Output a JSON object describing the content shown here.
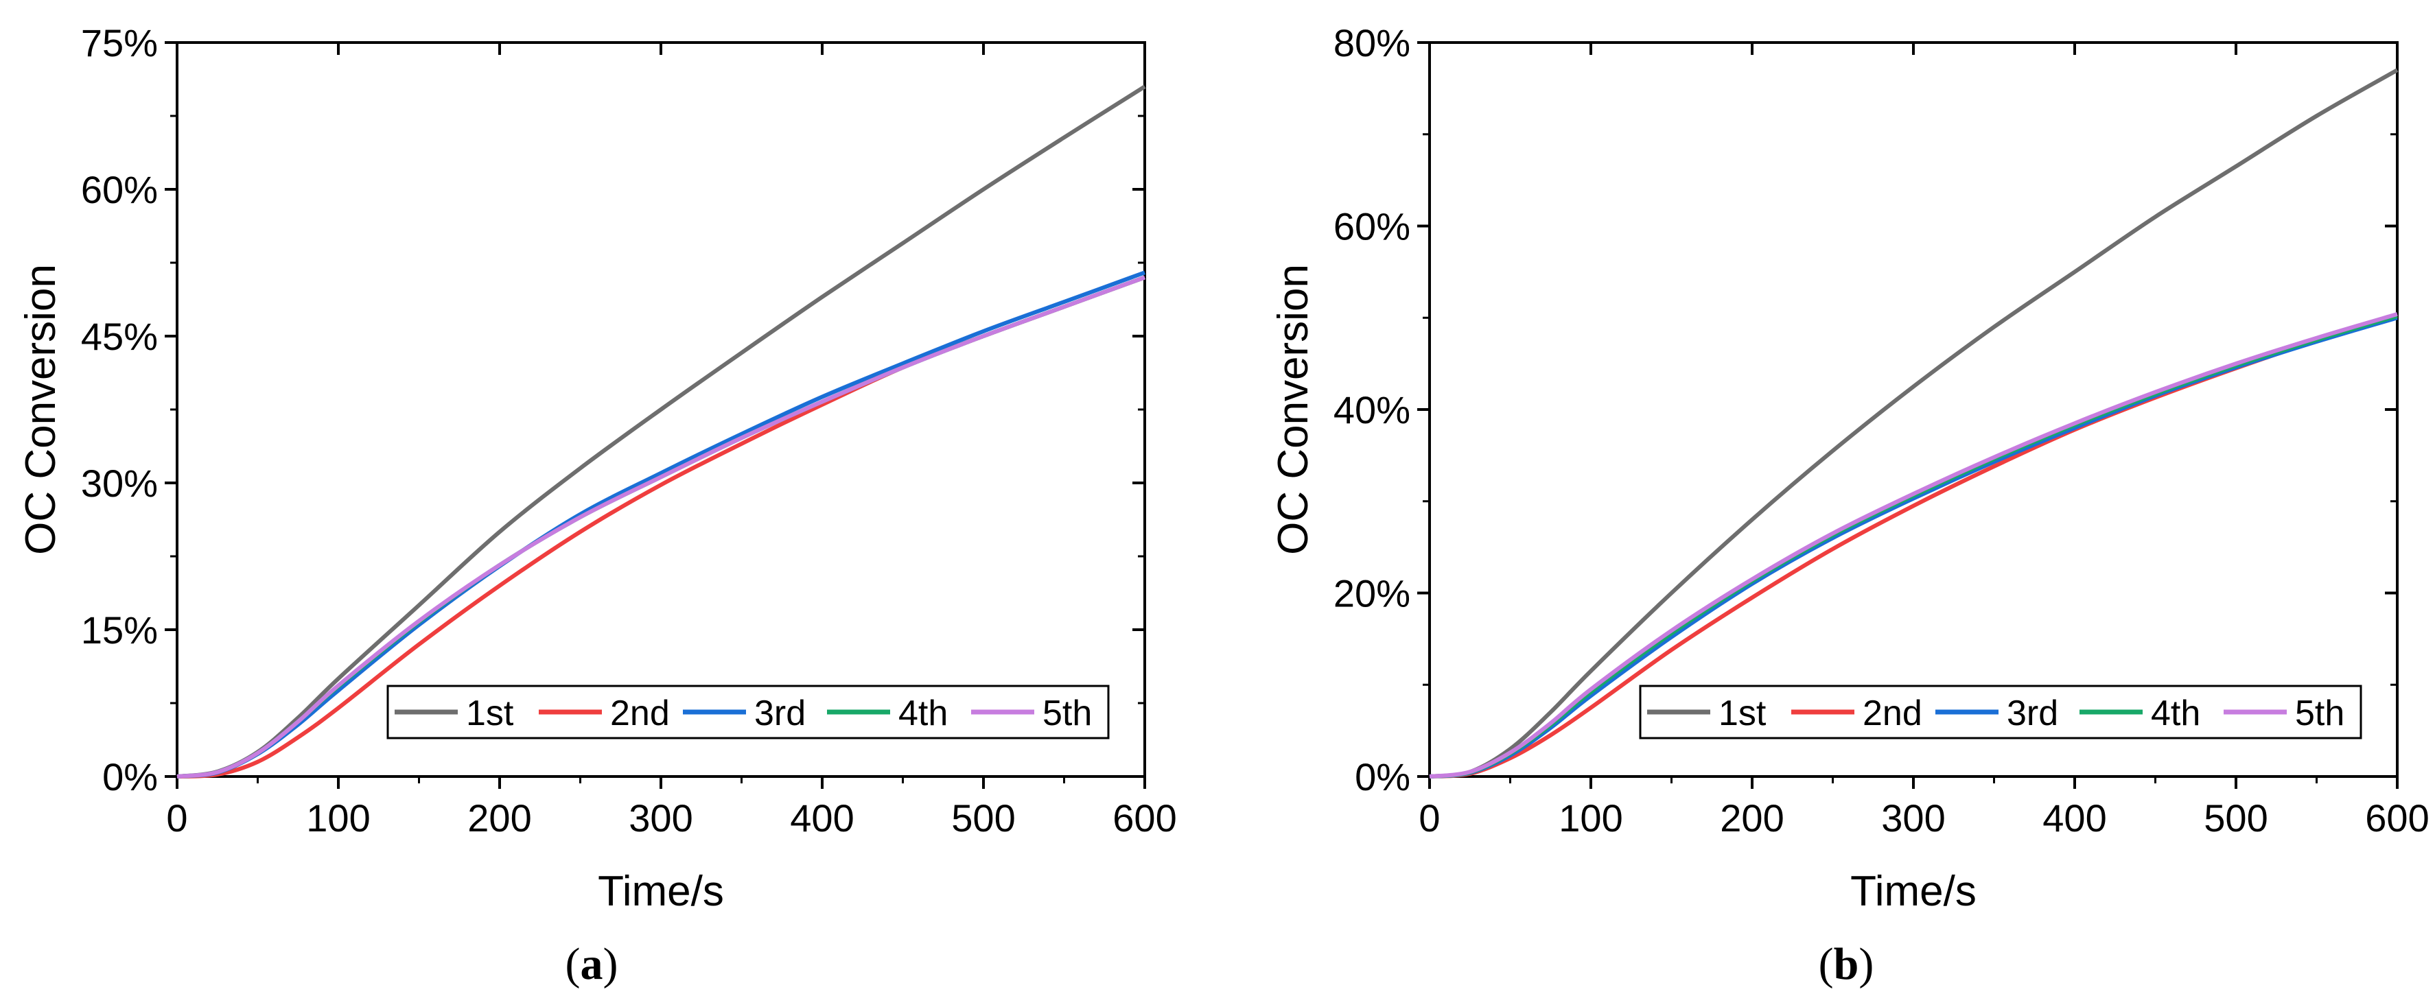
{
  "chart_data": [
    {
      "type": "line",
      "panel_label": "a",
      "xlabel": "Time/s",
      "ylabel": "OC Conversion",
      "xlim": [
        0,
        600
      ],
      "ylim": [
        0,
        75
      ],
      "x_ticks": [
        "0",
        "100",
        "200",
        "300",
        "400",
        "500",
        "600"
      ],
      "y_ticks": [
        "0%",
        "15%",
        "30%",
        "45%",
        "60%",
        "75%"
      ],
      "y_tick_values": [
        0,
        15,
        30,
        45,
        60,
        75
      ],
      "x_tick_values": [
        0,
        100,
        200,
        300,
        400,
        500,
        600
      ],
      "legend_position": "bottom-right",
      "x": [
        0,
        25,
        50,
        75,
        100,
        150,
        200,
        250,
        300,
        350,
        400,
        450,
        500,
        550,
        600
      ],
      "series": [
        {
          "name": "1st",
          "color": "#6e6e6e",
          "values": [
            0,
            0.5,
            2.5,
            6,
            10,
            17.5,
            25,
            31.5,
            37.5,
            43.3,
            49,
            54.5,
            60,
            65.3,
            70.5
          ]
        },
        {
          "name": "2nd",
          "color": "#ef3e3e",
          "values": [
            0,
            0.2,
            1.5,
            4,
            7,
            13.5,
            19.5,
            25,
            29.8,
            34,
            38,
            41.8,
            45,
            48,
            51
          ]
        },
        {
          "name": "3rd",
          "color": "#1a6fd6",
          "values": [
            0,
            0.4,
            2.3,
            5.3,
            8.8,
            15.5,
            21.5,
            26.8,
            31,
            35,
            38.8,
            42.2,
            45.5,
            48.5,
            51.5
          ]
        },
        {
          "name": "4th",
          "color": "#18a868",
          "values": [
            0,
            0.45,
            2.4,
            5.6,
            9.2,
            15.8,
            21.6,
            26.5,
            30.6,
            34.6,
            38.3,
            41.8,
            45,
            48,
            51
          ]
        },
        {
          "name": "5th",
          "color": "#c77ddf",
          "values": [
            0,
            0.45,
            2.4,
            5.6,
            9.3,
            15.9,
            21.6,
            26.5,
            30.6,
            34.6,
            38.3,
            41.8,
            45,
            48,
            51
          ]
        }
      ]
    },
    {
      "type": "line",
      "panel_label": "b",
      "xlabel": "Time/s",
      "ylabel": "OC Conversion",
      "xlim": [
        0,
        600
      ],
      "ylim": [
        0,
        80
      ],
      "x_ticks": [
        "0",
        "100",
        "200",
        "300",
        "400",
        "500",
        "600"
      ],
      "y_ticks": [
        "0%",
        "20%",
        "40%",
        "60%",
        "80%"
      ],
      "y_tick_values": [
        0,
        20,
        40,
        60,
        80
      ],
      "x_tick_values": [
        0,
        100,
        200,
        300,
        400,
        500,
        600
      ],
      "legend_position": "bottom-right",
      "x": [
        0,
        25,
        50,
        75,
        100,
        150,
        200,
        250,
        300,
        350,
        400,
        450,
        500,
        550,
        600
      ],
      "series": [
        {
          "name": "1st",
          "color": "#6e6e6e",
          "values": [
            0,
            0.5,
            3,
            7,
            11.5,
            20,
            28,
            35.5,
            42.5,
            49,
            55,
            61,
            66.5,
            72,
            77
          ]
        },
        {
          "name": "2nd",
          "color": "#ef3e3e",
          "values": [
            0,
            0.3,
            2,
            4.5,
            7.5,
            13.8,
            19.5,
            24.8,
            29.5,
            33.8,
            37.8,
            41.3,
            44.5,
            47.5,
            50.2
          ]
        },
        {
          "name": "3rd",
          "color": "#1a6fd6",
          "values": [
            0,
            0.4,
            2.3,
            5.3,
            8.8,
            15.2,
            21,
            26,
            30.3,
            34.3,
            38,
            41.5,
            44.6,
            47.4,
            50
          ]
        },
        {
          "name": "4th",
          "color": "#18a868",
          "values": [
            0,
            0.45,
            2.5,
            5.6,
            9.2,
            15.6,
            21.3,
            26.3,
            30.6,
            34.6,
            38.3,
            41.7,
            44.8,
            47.6,
            50.2
          ]
        },
        {
          "name": "5th",
          "color": "#c77ddf",
          "values": [
            0,
            0.5,
            2.6,
            5.8,
            9.5,
            15.9,
            21.5,
            26.5,
            30.8,
            34.8,
            38.5,
            41.9,
            45,
            47.8,
            50.4
          ]
        }
      ]
    }
  ]
}
